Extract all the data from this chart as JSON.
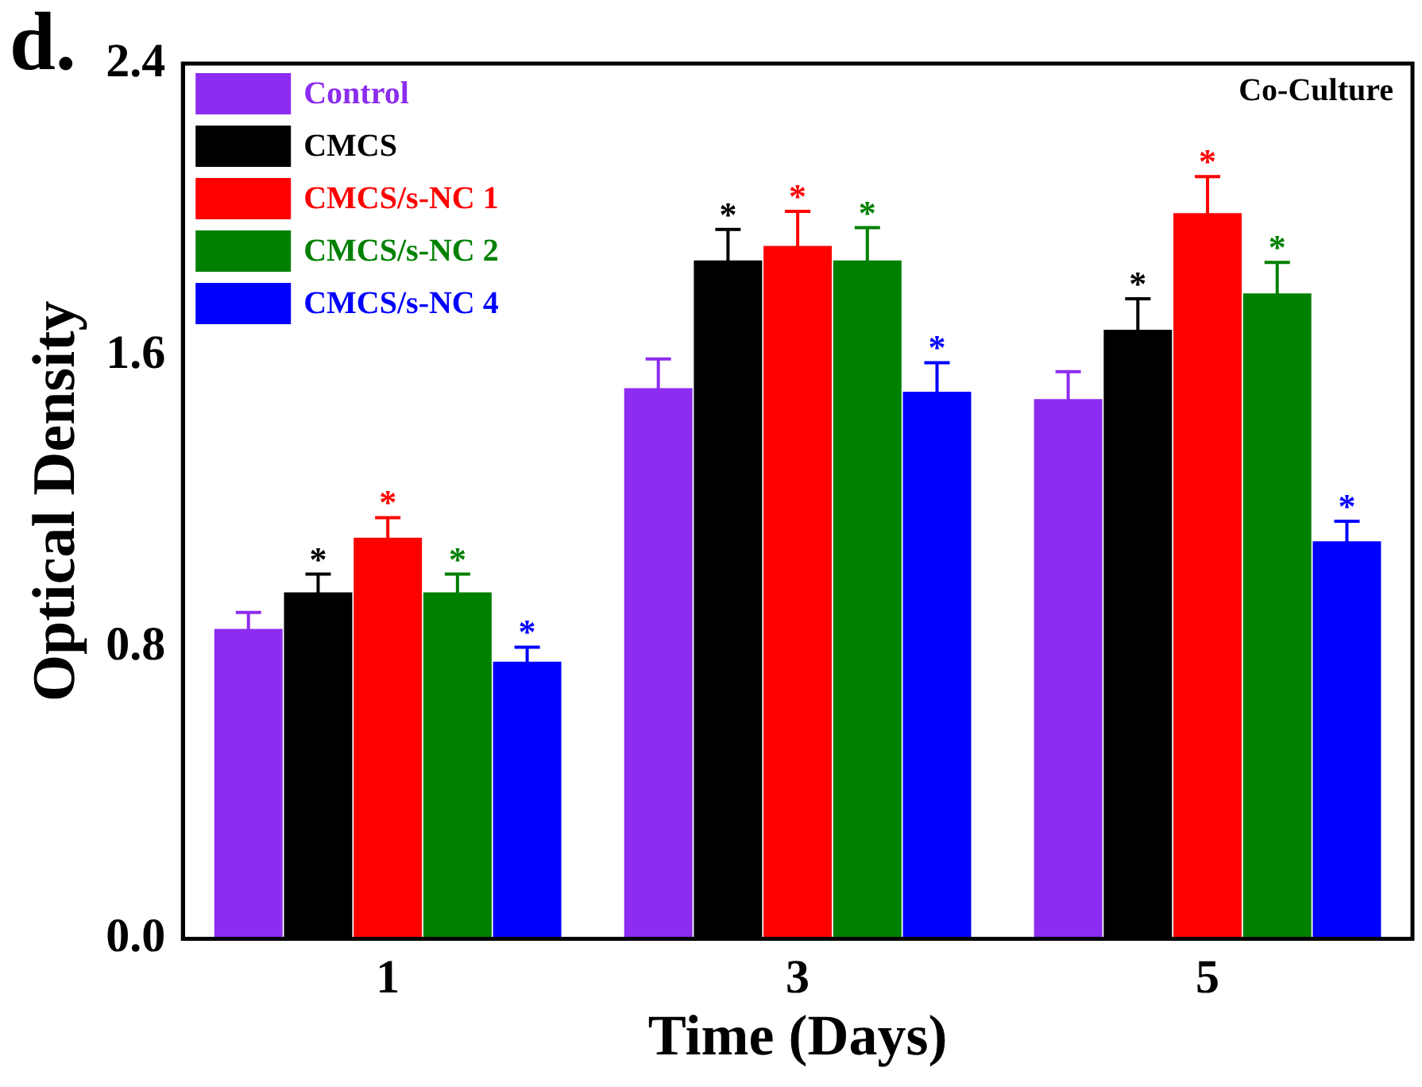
{
  "chart_data": {
    "type": "bar",
    "categories": [
      "1",
      "3",
      "5"
    ],
    "xlabel": "Time (Days)",
    "ylabel": "Optical Density",
    "ylim": [
      0,
      2.4
    ],
    "yticks": [
      {
        "value": 0,
        "label": "0.0"
      },
      {
        "value": 0.8,
        "label": "0.8"
      },
      {
        "value": 1.6,
        "label": "1.6"
      },
      {
        "value": 2.4,
        "label": "2.4"
      }
    ],
    "grid": false,
    "legend": "top left",
    "annotations": [
      "d.",
      "Co-Culture"
    ],
    "series": [
      {
        "name": "Control",
        "color": "#8c2cf0",
        "values": [
          0.85,
          1.51,
          1.48
        ],
        "errors": [
          0.045,
          0.08,
          0.075
        ]
      },
      {
        "name": "CMCS",
        "color": "#000000",
        "values": [
          0.95,
          1.86,
          1.67
        ],
        "errors": [
          0.05,
          0.085,
          0.085
        ],
        "value_labels": [
          "*",
          "*",
          "*"
        ]
      },
      {
        "name": "CMCS/s-NC 1",
        "color": "#ff0000",
        "values": [
          1.1,
          1.9,
          1.99
        ],
        "errors": [
          0.055,
          0.095,
          0.1
        ],
        "value_labels": [
          "*",
          "*",
          "*"
        ]
      },
      {
        "name": "CMCS/s-NC 2",
        "color": "#008000",
        "values": [
          0.95,
          1.86,
          1.77
        ],
        "errors": [
          0.05,
          0.09,
          0.085
        ],
        "value_labels": [
          "*",
          "*",
          "*"
        ]
      },
      {
        "name": "CMCS/s-NC 4",
        "color": "#0000ff",
        "values": [
          0.76,
          1.5,
          1.09
        ],
        "errors": [
          0.04,
          0.08,
          0.055
        ],
        "value_labels": [
          "*",
          "*",
          "*"
        ]
      }
    ]
  }
}
